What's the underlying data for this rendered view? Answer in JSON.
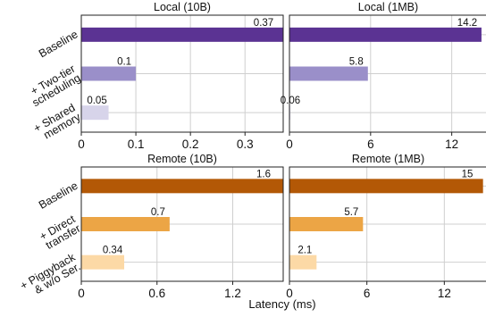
{
  "chart_data": {
    "type": "bar",
    "orientation": "horizontal",
    "grid": true,
    "xlabel": "Latency (ms)",
    "panels": [
      {
        "id": "local-10b",
        "title": "Local (10B)",
        "categories": [
          [
            "Baseline"
          ],
          [
            "+ Two-tier",
            "scheduling"
          ],
          [
            "+ Shared",
            "memory"
          ]
        ],
        "values": [
          0.37,
          0.1,
          0.05
        ],
        "value_labels": [
          "0.37",
          "0.1",
          "0.05"
        ],
        "colors": [
          "#5b3393",
          "#9a8fc9",
          "#d7d4ea"
        ],
        "xlim": [
          0,
          0.37
        ],
        "xticks": [
          0,
          0.1,
          0.2,
          0.3
        ],
        "xtick_labels": [
          "0",
          "0.1",
          "0.2",
          "0.3"
        ]
      },
      {
        "id": "local-1mb",
        "title": "Local (1MB)",
        "categories": [
          [
            "Baseline"
          ],
          [
            "+ Two-tier",
            "scheduling"
          ],
          [
            "+ Shared",
            "memory"
          ]
        ],
        "values": [
          14.2,
          5.8,
          0.06
        ],
        "value_labels": [
          "14.2",
          "5.8",
          "0.06"
        ],
        "colors": [
          "#5b3393",
          "#9a8fc9",
          "#d7d4ea"
        ],
        "xlim": [
          0,
          14.6
        ],
        "xticks": [
          0,
          6,
          12
        ],
        "xtick_labels": [
          "0",
          "6",
          "12"
        ]
      },
      {
        "id": "remote-10b",
        "title": "Remote (10B)",
        "categories": [
          [
            "Baseline"
          ],
          [
            "+ Direct",
            "transfer"
          ],
          [
            "+ Piggyback",
            "& w/o Ser."
          ]
        ],
        "values": [
          1.6,
          0.7,
          0.34
        ],
        "value_labels": [
          "1.6",
          "0.7",
          "0.34"
        ],
        "colors": [
          "#b35806",
          "#eca545",
          "#fcd9a6"
        ],
        "xlim": [
          0,
          1.6
        ],
        "xticks": [
          0,
          0.6,
          1.2
        ],
        "xtick_labels": [
          "0",
          "0.6",
          "1.2"
        ]
      },
      {
        "id": "remote-1mb",
        "title": "Remote (1MB)",
        "categories": [
          [
            "Baseline"
          ],
          [
            "+ Direct",
            "transfer"
          ],
          [
            "+ Piggyback",
            "& w/o Ser."
          ]
        ],
        "values": [
          15,
          5.7,
          2.1
        ],
        "value_labels": [
          "15",
          "5.7",
          "2.1"
        ],
        "colors": [
          "#b35806",
          "#eca545",
          "#fcd9a6"
        ],
        "xlim": [
          0,
          15.3
        ],
        "xticks": [
          0,
          6,
          12
        ],
        "xtick_labels": [
          "0",
          "6",
          "12"
        ]
      }
    ]
  }
}
